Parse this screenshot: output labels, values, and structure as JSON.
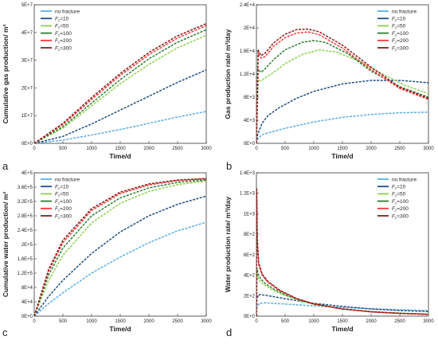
{
  "chart_data": [
    {
      "type": "line",
      "panel_label": "a",
      "xlabel": "Time/d",
      "ylabel": "Cumulative gas production/ m³",
      "xlim": [
        0,
        3000
      ],
      "ylim": [
        0,
        50000000
      ],
      "xticks": [
        0,
        500,
        1000,
        1500,
        2000,
        2500,
        3000
      ],
      "xtick_labels": [
        "0",
        "500",
        "1000",
        "1500",
        "2000",
        "2500",
        "3000"
      ],
      "yticks": [
        0,
        10000000,
        20000000,
        30000000,
        40000000,
        50000000
      ],
      "ytick_labels": [
        "0E+0",
        "1E+7",
        "2E+7",
        "3E+7",
        "4E+7",
        "5E+7"
      ],
      "legend_position": "top-left",
      "series": [
        {
          "name": "no fracture",
          "color": "#5aaee6",
          "x": [
            0,
            500,
            1000,
            1500,
            2000,
            2500,
            3000
          ],
          "y": [
            0,
            1200000,
            3000000,
            5000000,
            7200000,
            9500000,
            11500000
          ]
        },
        {
          "name": "Fc=10",
          "color": "#1f4f86",
          "x": [
            0,
            500,
            1000,
            1500,
            2000,
            2500,
            3000
          ],
          "y": [
            0,
            2500000,
            7000000,
            12000000,
            17000000,
            22000000,
            26500000
          ]
        },
        {
          "name": "Fc=50",
          "color": "#8fd14f",
          "x": [
            0,
            500,
            1000,
            1500,
            2000,
            2500,
            3000
          ],
          "y": [
            0,
            5500000,
            13500000,
            21500000,
            28500000,
            34500000,
            39000000
          ]
        },
        {
          "name": "Fc=100",
          "color": "#2e7d32",
          "x": [
            0,
            500,
            1000,
            1500,
            2000,
            2500,
            3000
          ],
          "y": [
            0,
            6000000,
            14500000,
            23000000,
            30500000,
            36500000,
            41000000
          ]
        },
        {
          "name": "Fc=200",
          "color": "#f23a3a",
          "x": [
            0,
            500,
            1000,
            1500,
            2000,
            2500,
            3000
          ],
          "y": [
            0,
            6800000,
            15800000,
            24500000,
            32000000,
            38000000,
            42500000
          ]
        },
        {
          "name": "Fc=300",
          "color": "#8a1b1b",
          "x": [
            0,
            500,
            1000,
            1500,
            2000,
            2500,
            3000
          ],
          "y": [
            0,
            7200000,
            16500000,
            25200000,
            32800000,
            38800000,
            43200000
          ]
        }
      ]
    },
    {
      "type": "line",
      "panel_label": "b",
      "xlabel": "Time/d",
      "ylabel": "Gas production rate/ m³/day",
      "xlim": [
        0,
        3000
      ],
      "ylim": [
        0,
        24000
      ],
      "xticks": [
        0,
        500,
        1000,
        1500,
        2000,
        2500,
        3000
      ],
      "xtick_labels": [
        "0",
        "500",
        "1000",
        "1500",
        "2000",
        "2500",
        "3000"
      ],
      "yticks": [
        0,
        4000,
        8000,
        12000,
        16000,
        20000,
        24000
      ],
      "ytick_labels": [
        "0E+0",
        "4E+3",
        "8E+3",
        "1.2E+4",
        "1.6E+4",
        "2E+4",
        "2.4E+4"
      ],
      "legend_position": "top-right",
      "series": [
        {
          "name": "no fracture",
          "color": "#5aaee6",
          "x": [
            0,
            20,
            100,
            200,
            500,
            1000,
            1500,
            2000,
            2500,
            3000
          ],
          "y": [
            0,
            800,
            1500,
            1800,
            2600,
            3700,
            4500,
            5000,
            5300,
            5400
          ]
        },
        {
          "name": "Fc=10",
          "color": "#1f4f86",
          "x": [
            0,
            20,
            100,
            200,
            400,
            700,
            1000,
            1500,
            2000,
            2500,
            3000
          ],
          "y": [
            0,
            1500,
            3500,
            4800,
            6200,
            7800,
            9000,
            10300,
            10900,
            10900,
            10500
          ]
        },
        {
          "name": "Fc=50",
          "color": "#8fd14f",
          "x": [
            0,
            30,
            80,
            150,
            300,
            500,
            800,
            1100,
            1400,
            1800,
            2200,
            2600,
            3000
          ],
          "y": [
            0,
            11000,
            10800,
            11300,
            12300,
            13800,
            15400,
            16200,
            15800,
            14200,
            12000,
            10000,
            8600
          ]
        },
        {
          "name": "Fc=100",
          "color": "#2e7d32",
          "x": [
            0,
            30,
            80,
            150,
            300,
            500,
            800,
            1000,
            1200,
            1600,
            2000,
            2500,
            3000
          ],
          "y": [
            0,
            12800,
            12300,
            12900,
            14500,
            16200,
            17500,
            17800,
            17500,
            15500,
            12500,
            9800,
            8000
          ]
        },
        {
          "name": "Fc=200",
          "color": "#f23a3a",
          "x": [
            0,
            30,
            80,
            150,
            300,
            500,
            700,
            900,
            1100,
            1500,
            2000,
            2500,
            3000
          ],
          "y": [
            0,
            15500,
            14800,
            15000,
            16800,
            18300,
            19100,
            19300,
            18800,
            16500,
            12800,
            9500,
            7600
          ]
        },
        {
          "name": "Fc=300",
          "color": "#8a1b1b",
          "x": [
            0,
            30,
            80,
            150,
            300,
            500,
            700,
            900,
            1100,
            1500,
            2000,
            2500,
            3000
          ],
          "y": [
            0,
            16200,
            15200,
            15600,
            17400,
            18900,
            19700,
            19800,
            19300,
            17000,
            13200,
            9700,
            7800
          ]
        }
      ]
    },
    {
      "type": "line",
      "panel_label": "c",
      "xlabel": "Time/d",
      "ylabel": "Cumulative water production/ m³",
      "xlim": [
        0,
        3000
      ],
      "ylim": [
        0,
        400000
      ],
      "xticks": [
        0,
        500,
        1000,
        1500,
        2000,
        2500,
        3000
      ],
      "xtick_labels": [
        "0",
        "500",
        "1000",
        "1500",
        "2000",
        "2500",
        "3000"
      ],
      "yticks": [
        0,
        40000,
        80000,
        120000,
        160000,
        200000,
        240000,
        280000,
        320000,
        360000,
        400000
      ],
      "ytick_labels": [
        "0E+0",
        "4E+4",
        "8E+4",
        "1.2E+5",
        "1.6E+5",
        "2E+5",
        "2.4E+5",
        "2.8E+5",
        "3.2E+5",
        "3.6E+5",
        "4E+5"
      ],
      "legend_position": "top-left",
      "series": [
        {
          "name": "no fracture",
          "color": "#5aaee6",
          "x": [
            0,
            250,
            500,
            1000,
            1500,
            2000,
            2500,
            3000
          ],
          "y": [
            0,
            35000,
            65000,
            120000,
            165000,
            205000,
            238000,
            262000
          ]
        },
        {
          "name": "Fc=10",
          "color": "#1f4f86",
          "x": [
            0,
            250,
            500,
            1000,
            1500,
            2000,
            2500,
            3000
          ],
          "y": [
            0,
            55000,
            100000,
            175000,
            235000,
            280000,
            312000,
            335000
          ]
        },
        {
          "name": "Fc=50",
          "color": "#8fd14f",
          "x": [
            0,
            250,
            500,
            1000,
            1500,
            2000,
            2500,
            3000
          ],
          "y": [
            0,
            100000,
            170000,
            260000,
            315000,
            348000,
            367000,
            377000
          ]
        },
        {
          "name": "Fc=100",
          "color": "#2e7d32",
          "x": [
            0,
            250,
            500,
            1000,
            1500,
            2000,
            2500,
            3000
          ],
          "y": [
            0,
            115000,
            190000,
            280000,
            330000,
            358000,
            373000,
            380000
          ]
        },
        {
          "name": "Fc=200",
          "color": "#f23a3a",
          "x": [
            0,
            250,
            500,
            1000,
            1500,
            2000,
            2500,
            3000
          ],
          "y": [
            0,
            125000,
            205000,
            295000,
            342000,
            366000,
            378000,
            383000
          ]
        },
        {
          "name": "Fc=300",
          "color": "#8a1b1b",
          "x": [
            0,
            250,
            500,
            1000,
            1500,
            2000,
            2500,
            3000
          ],
          "y": [
            0,
            130000,
            212000,
            300000,
            346000,
            369000,
            380000,
            384000
          ]
        }
      ]
    },
    {
      "type": "line",
      "panel_label": "d",
      "xlabel": "Time/d",
      "ylabel": "Water production rate/ m³/day",
      "xlim": [
        0,
        3000
      ],
      "ylim": [
        0,
        1400
      ],
      "xticks": [
        0,
        500,
        1000,
        1500,
        2000,
        2500,
        3000
      ],
      "xtick_labels": [
        "0",
        "500",
        "1000",
        "1500",
        "2000",
        "2500",
        "3000"
      ],
      "yticks": [
        0,
        200,
        400,
        600,
        800,
        1000,
        1200,
        1400
      ],
      "ytick_labels": [
        "0E+0",
        "2E+2",
        "4E+2",
        "6E+2",
        "8E+2",
        "1E+3",
        "1.2E+3",
        "1.4E+3"
      ],
      "legend_position": "top-right",
      "series": [
        {
          "name": "no fracture",
          "color": "#5aaee6",
          "x": [
            0,
            10,
            50,
            150,
            300,
            500,
            1000,
            1500,
            2000,
            2500,
            3000
          ],
          "y": [
            0,
            90,
            125,
            130,
            125,
            118,
            100,
            85,
            72,
            62,
            55
          ]
        },
        {
          "name": "Fc=10",
          "color": "#1f4f86",
          "x": [
            0,
            10,
            50,
            150,
            300,
            500,
            1000,
            1500,
            2000,
            2500,
            3000
          ],
          "y": [
            0,
            180,
            210,
            205,
            190,
            170,
            125,
            95,
            70,
            55,
            45
          ]
        },
        {
          "name": "Fc=50",
          "color": "#8fd14f",
          "x": [
            0,
            10,
            30,
            80,
            150,
            300,
            500,
            800,
            1000,
            1500,
            2000,
            2500,
            3000
          ],
          "y": [
            0,
            420,
            370,
            330,
            300,
            250,
            200,
            145,
            115,
            70,
            45,
            30,
            20
          ]
        },
        {
          "name": "Fc=100",
          "color": "#2e7d32",
          "x": [
            0,
            10,
            30,
            80,
            150,
            300,
            500,
            800,
            1000,
            1500,
            2000,
            2500,
            3000
          ],
          "y": [
            0,
            470,
            410,
            360,
            320,
            265,
            210,
            150,
            118,
            70,
            43,
            28,
            18
          ]
        },
        {
          "name": "Fc=200",
          "color": "#f23a3a",
          "x": [
            0,
            5,
            15,
            40,
            100,
            200,
            400,
            700,
            1000,
            1500,
            2000,
            2500,
            3000
          ],
          "y": [
            0,
            1150,
            700,
            500,
            400,
            330,
            250,
            170,
            120,
            70,
            42,
            27,
            17
          ]
        },
        {
          "name": "Fc=300",
          "color": "#8a1b1b",
          "x": [
            0,
            5,
            15,
            40,
            100,
            200,
            400,
            700,
            1000,
            1500,
            2000,
            2500,
            3000
          ],
          "y": [
            0,
            1250,
            750,
            520,
            410,
            340,
            255,
            172,
            120,
            70,
            42,
            27,
            17
          ]
        }
      ]
    }
  ]
}
